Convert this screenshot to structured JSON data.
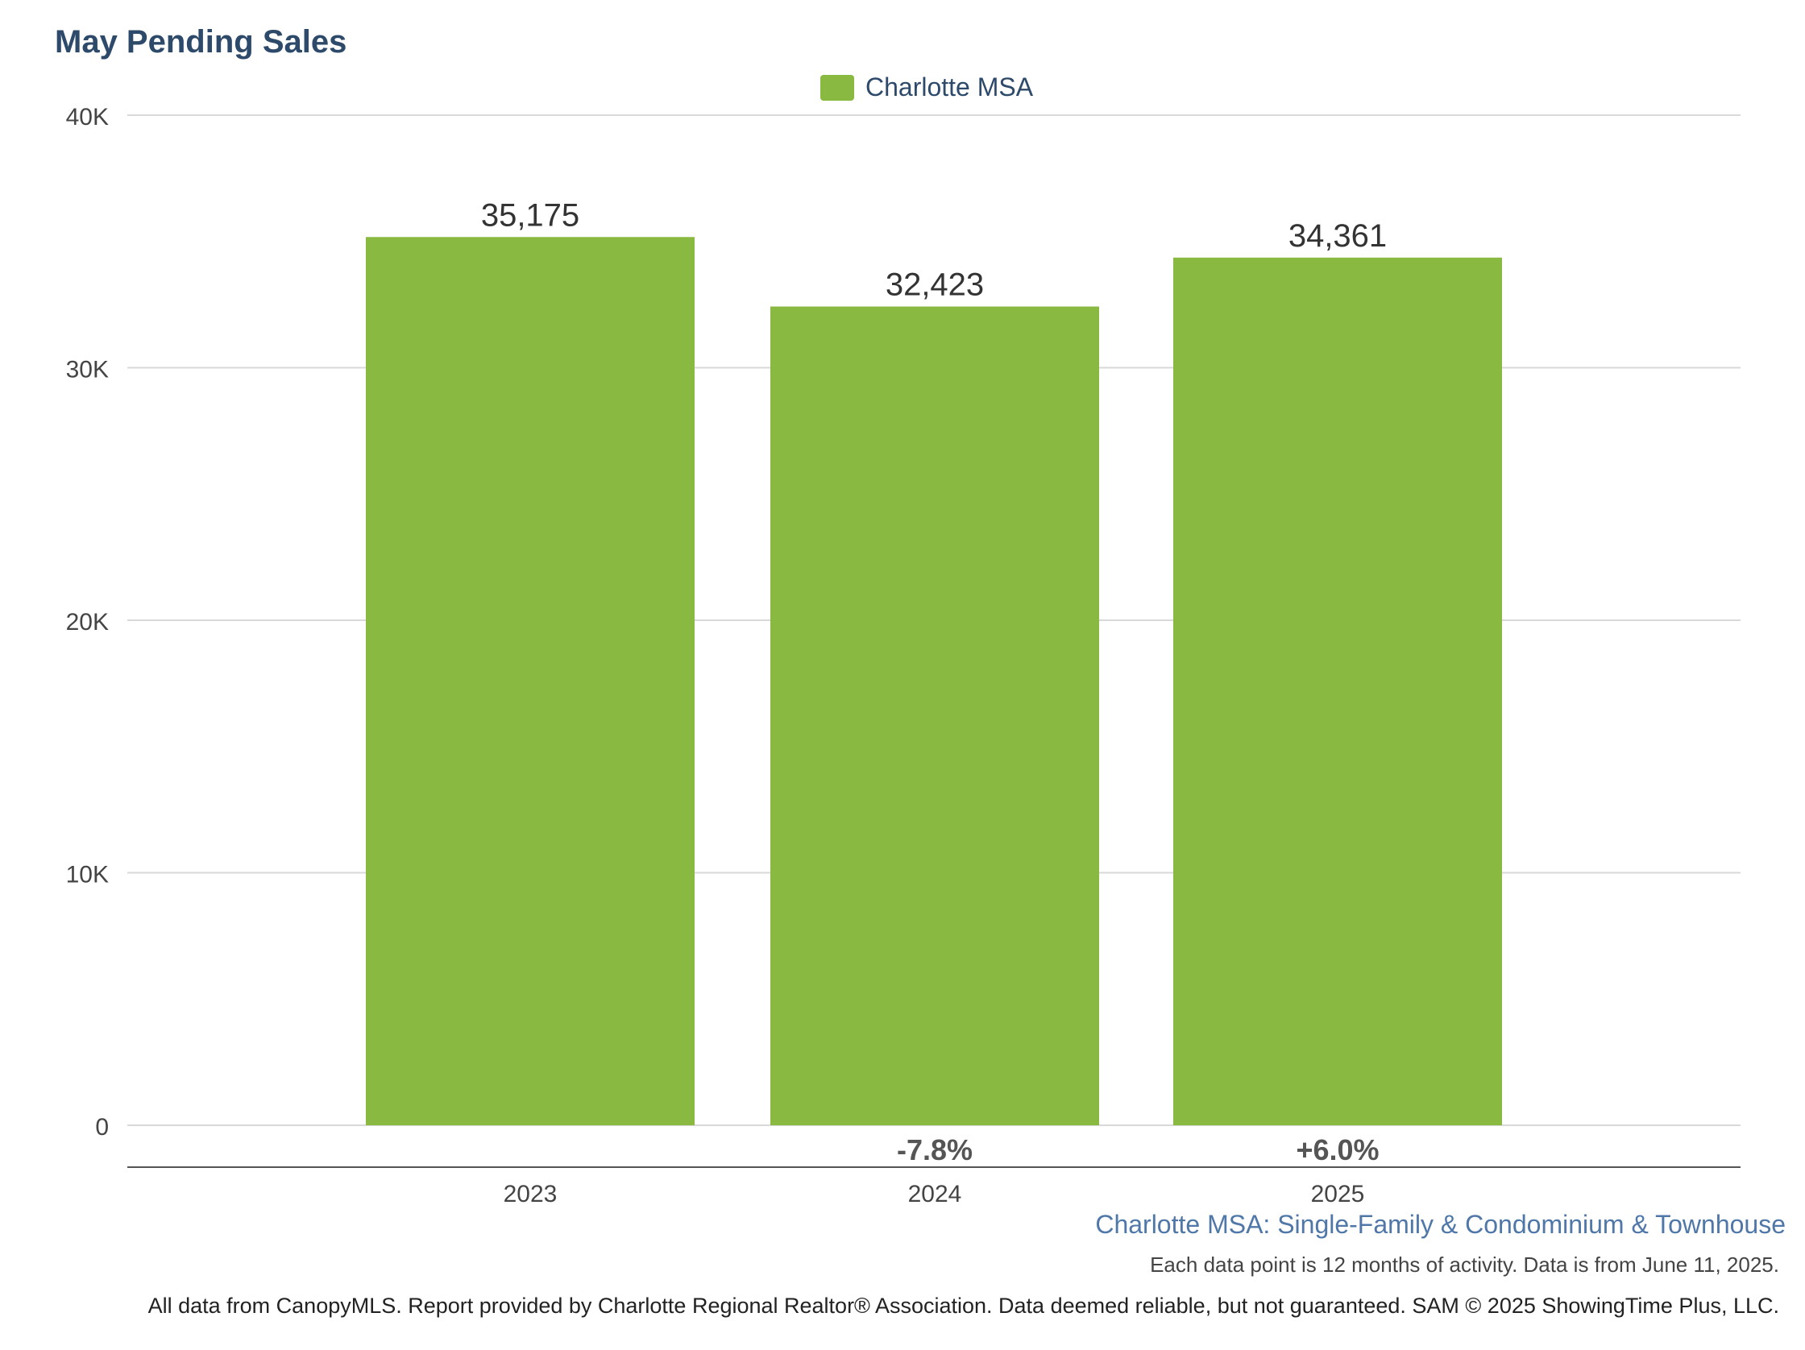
{
  "chart_data": {
    "type": "bar",
    "title": "May Pending Sales",
    "categories": [
      "2023",
      "2024",
      "2025"
    ],
    "series": [
      {
        "name": "Charlotte MSA",
        "values": [
          35175,
          32423,
          34361
        ]
      }
    ],
    "value_labels": [
      "35,175",
      "32,423",
      "34,361"
    ],
    "change_labels": [
      "",
      "-7.8%",
      "+6.0%"
    ],
    "ylim": [
      0,
      40000
    ],
    "yticks": [
      0,
      10000,
      20000,
      30000,
      40000
    ],
    "ytick_labels": [
      "0",
      "10K",
      "20K",
      "30K",
      "40K"
    ],
    "grid": true,
    "legend_position": "top-center",
    "bar_color": "#89b941"
  },
  "subtitle": "Charlotte MSA: Single-Family & Condominium & Townhouse",
  "note": "Each data point is 12 months of activity. Data is from June 11, 2025.",
  "footer": "All data from CanopyMLS. Report provided by Charlotte Regional Realtor® Association. Data deemed reliable, but not guaranteed. SAM © 2025 ShowingTime Plus, LLC."
}
